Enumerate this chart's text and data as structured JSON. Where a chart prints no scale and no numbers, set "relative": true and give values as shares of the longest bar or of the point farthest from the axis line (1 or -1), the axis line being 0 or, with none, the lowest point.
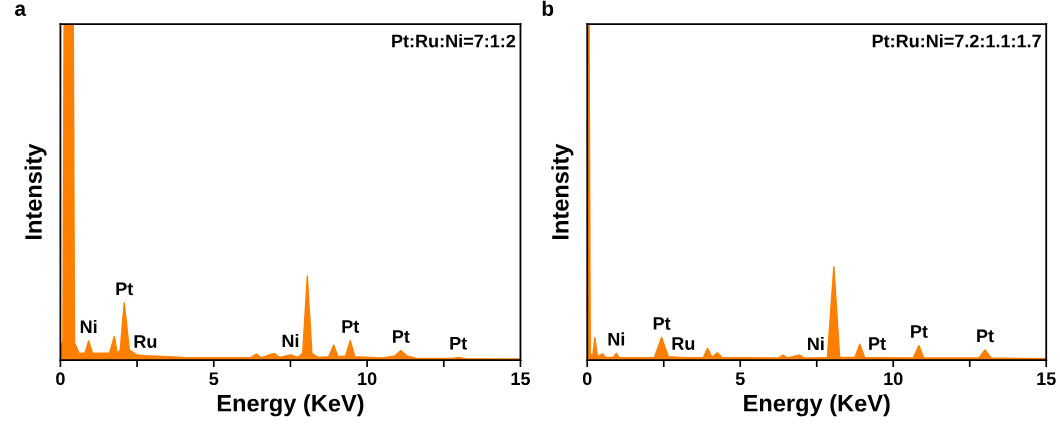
{
  "chart_data": [
    {
      "type": "area",
      "title": "a",
      "xlabel": "Energy (KeV)",
      "ylabel": "Intensity",
      "relative": true,
      "tick_labels": "x",
      "xlim": [
        0,
        15
      ],
      "xticks": [
        0,
        {
          "value": 2.5,
          "label": null
        },
        5,
        {
          "value": 7.5,
          "label": null
        },
        10,
        {
          "value": 12.5,
          "label": null
        },
        15
      ],
      "series": [
        {
          "color": "#ff8000",
          "x": [
            0,
            0.08,
            0.12,
            0.42,
            0.46,
            0.52,
            0.6,
            0.8,
            0.92,
            1.05,
            1.6,
            1.76,
            1.85,
            1.95,
            2.08,
            2.25,
            2.5,
            2.77,
            3,
            4,
            5,
            6.2,
            6.39,
            6.55,
            6.96,
            7.15,
            7.5,
            7.75,
            7.9,
            8.05,
            8.2,
            8.4,
            8.75,
            8.91,
            9.05,
            9.3,
            9.45,
            9.6,
            10.5,
            10.9,
            11.1,
            11.3,
            11.6,
            12.8,
            12.97,
            13.2,
            15
          ],
          "values": [
            0.05,
            0.05,
            1,
            1,
            0.05,
            0.04,
            0.02,
            0.02,
            0.057,
            0.02,
            0.02,
            0.07,
            0.02,
            0.03,
            0.17,
            0.03,
            0.015,
            0.013,
            0.012,
            0.008,
            0.007,
            0.007,
            0.018,
            0.007,
            0.02,
            0.008,
            0.015,
            0.008,
            0.02,
            0.25,
            0.02,
            0.008,
            0.01,
            0.045,
            0.01,
            0.012,
            0.058,
            0.01,
            0.006,
            0.012,
            0.028,
            0.012,
            0.005,
            0.005,
            0.008,
            0.004,
            0.003
          ]
        }
      ],
      "annotations": [
        "Pt:Ru:Ni=7:1:2",
        {
          "text": "Ni",
          "x": 0.92,
          "y": 0.057
        },
        {
          "text": "Pt",
          "x": 2.08,
          "y": 0.17
        },
        {
          "text": "Ru",
          "x": 2.77,
          "y": 0.013
        },
        {
          "text": "Ni",
          "x": 7.5,
          "y": 0.015
        },
        {
          "text": "Pt",
          "x": 9.45,
          "y": 0.058
        },
        {
          "text": "Pt",
          "x": 11.1,
          "y": 0.028
        },
        {
          "text": "Pt",
          "x": 12.97,
          "y": 0.008
        }
      ]
    },
    {
      "type": "area",
      "title": "b",
      "xlabel": "Energy (KeV)",
      "ylabel": "Intensity",
      "relative": true,
      "tick_labels": "x",
      "xlim": [
        0,
        15
      ],
      "xticks": [
        0,
        {
          "value": 2.5,
          "label": null
        },
        5,
        {
          "value": 7.5,
          "label": null
        },
        10,
        {
          "value": 12.5,
          "label": null
        },
        15
      ],
      "series": [
        {
          "color": "#ff8000",
          "x": [
            0,
            0.06,
            0.1,
            0.18,
            0.25,
            0.33,
            0.51,
            0.6,
            0.85,
            0.95,
            1.05,
            2.2,
            2.43,
            2.65,
            3.14,
            3.8,
            3.93,
            4.08,
            4.25,
            4.4,
            6.25,
            6.4,
            6.55,
            6.94,
            7.1,
            7.47,
            7.85,
            8.06,
            8.25,
            8.75,
            8.91,
            9.07,
            9.47,
            10.65,
            10.84,
            11.0,
            12.8,
            13.0,
            13.2,
            15
          ],
          "values": [
            1,
            1,
            0.02,
            0.01,
            0.067,
            0.01,
            0.018,
            0.008,
            0.008,
            0.02,
            0.007,
            0.008,
            0.067,
            0.01,
            0.007,
            0.008,
            0.035,
            0.008,
            0.022,
            0.008,
            0.006,
            0.015,
            0.006,
            0.015,
            0.006,
            0.006,
            0.008,
            0.278,
            0.008,
            0.008,
            0.047,
            0.007,
            0.007,
            0.006,
            0.043,
            0.006,
            0.006,
            0.03,
            0.006,
            0.004
          ]
        }
      ],
      "annotations": [
        "Pt:Ru:Ni=7.2:1.1:1.7",
        {
          "text": "Ni",
          "x": 0.95,
          "y": 0.02
        },
        {
          "text": "Pt",
          "x": 2.43,
          "y": 0.067
        },
        {
          "text": "Ru",
          "x": 3.14,
          "y": 0.007
        },
        {
          "text": "Ni",
          "x": 7.47,
          "y": 0.006
        },
        {
          "text": "Pt",
          "x": 9.47,
          "y": 0.007
        },
        {
          "text": "Pt",
          "x": 10.84,
          "y": 0.043
        },
        {
          "text": "Pt",
          "x": 13.0,
          "y": 0.03
        }
      ]
    }
  ]
}
